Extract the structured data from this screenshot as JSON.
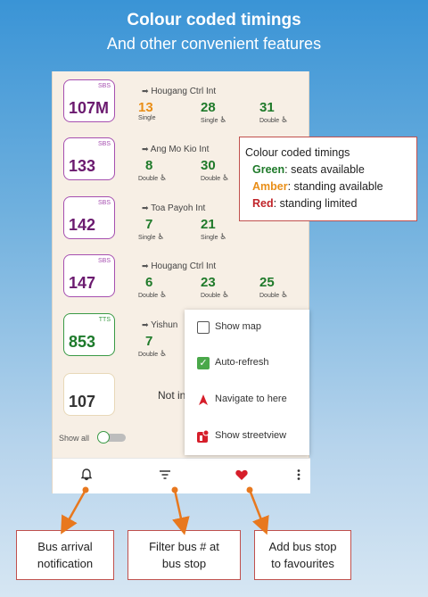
{
  "hero": {
    "title": "Colour coded timings",
    "subtitle": "And other convenient features"
  },
  "colors": {
    "green": "#1f7a2a",
    "amber": "#e98e17",
    "red": "#c0242a",
    "purple": "#6b1a6f",
    "accent": "#d61e2a"
  },
  "buses": [
    {
      "number": "107M",
      "operator": "SBS",
      "destination": "Hougang Ctrl Int",
      "timings": [
        {
          "value": "13",
          "type": "Single",
          "color": "amber"
        },
        {
          "value": "28",
          "type": "Single",
          "color": "green"
        },
        {
          "value": "31",
          "type": "Double",
          "color": "green"
        }
      ]
    },
    {
      "number": "133",
      "operator": "SBS",
      "destination": "Ang Mo Kio Int",
      "timings": [
        {
          "value": "8",
          "type": "Double",
          "color": "green"
        },
        {
          "value": "30",
          "type": "Double",
          "color": "green"
        }
      ]
    },
    {
      "number": "142",
      "operator": "SBS",
      "destination": "Toa Payoh Int",
      "timings": [
        {
          "value": "7",
          "type": "Single",
          "color": "green"
        },
        {
          "value": "21",
          "type": "Single",
          "color": "green"
        }
      ]
    },
    {
      "number": "147",
      "operator": "SBS",
      "destination": "Hougang Ctrl Int",
      "timings": [
        {
          "value": "6",
          "type": "Double",
          "color": "green"
        },
        {
          "value": "23",
          "type": "Double",
          "color": "green"
        },
        {
          "value": "25",
          "type": "Double",
          "color": "green"
        }
      ]
    },
    {
      "number": "853",
      "operator": "TTS",
      "destination": "Yishun",
      "timings": [
        {
          "value": "7",
          "type": "Double",
          "color": "green"
        }
      ]
    },
    {
      "number": "107",
      "operator": "",
      "status": "Not in"
    }
  ],
  "show_all_label": "Show all",
  "menu": {
    "items": [
      {
        "label": "Show map",
        "icon": "checkbox-empty-icon"
      },
      {
        "label": "Auto-refresh",
        "icon": "checkbox-checked-icon"
      },
      {
        "label": "Navigate to here",
        "icon": "navigation-arrow-icon"
      },
      {
        "label": "Show streetview",
        "icon": "streetview-icon"
      }
    ]
  },
  "legend": {
    "title": "Colour coded timings",
    "green_label": "Green",
    "green_text": ": seats available",
    "amber_label": "Amber",
    "amber_text": ": standing available",
    "red_label": "Red",
    "red_text": ": standing limited"
  },
  "bottom_bar": [
    "bell-icon",
    "filter-icon",
    "heart-icon",
    "more-vert-icon"
  ],
  "callouts": {
    "notification": [
      "Bus arrival",
      "notification"
    ],
    "filter": [
      "Filter bus # at",
      "bus stop"
    ],
    "favourites": [
      "Add bus stop",
      "to favourites"
    ]
  }
}
